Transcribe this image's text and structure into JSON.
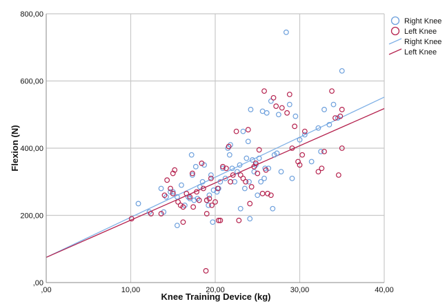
{
  "chart_data": {
    "type": "scatter",
    "xlabel": "Knee Training Device (kg)",
    "ylabel": "Flexion (N)",
    "xlim": [
      0,
      40
    ],
    "ylim": [
      0,
      800
    ],
    "x_ticks": [
      ",00",
      "10,00",
      "20,00",
      "30,00",
      "40,00"
    ],
    "y_ticks": [
      ",00",
      "200,00",
      "400,00",
      "600,00",
      "800,00"
    ],
    "grid": true,
    "legend_position": "top-right",
    "legend": [
      {
        "label": "Right Knee",
        "kind": "marker",
        "color": "#6c9fdc"
      },
      {
        "label": "Left Knee",
        "kind": "marker",
        "color": "#b5224e"
      },
      {
        "label": "Right Knee",
        "kind": "line",
        "color": "#7fb0e6"
      },
      {
        "label": "Left Knee",
        "kind": "line",
        "color": "#b5224e"
      }
    ],
    "series": [
      {
        "name": "Right Knee",
        "color": "#6c9fdc",
        "points": [
          [
            10.9,
            235
          ],
          [
            12.2,
            210
          ],
          [
            13.6,
            280
          ],
          [
            13.9,
            210
          ],
          [
            14.2,
            255
          ],
          [
            14.7,
            270
          ],
          [
            15.0,
            270
          ],
          [
            15.5,
            255
          ],
          [
            15.5,
            170
          ],
          [
            16.0,
            290
          ],
          [
            16.4,
            230
          ],
          [
            16.8,
            255
          ],
          [
            17.0,
            250
          ],
          [
            17.2,
            380
          ],
          [
            17.3,
            320
          ],
          [
            17.5,
            245
          ],
          [
            17.7,
            345
          ],
          [
            17.9,
            250
          ],
          [
            18.2,
            285
          ],
          [
            18.5,
            300
          ],
          [
            18.7,
            350
          ],
          [
            19.0,
            245
          ],
          [
            19.2,
            230
          ],
          [
            19.3,
            260
          ],
          [
            19.5,
            320
          ],
          [
            19.7,
            180
          ],
          [
            19.8,
            275
          ],
          [
            20.2,
            270
          ],
          [
            20.4,
            280
          ],
          [
            20.6,
            300
          ],
          [
            20.9,
            340
          ],
          [
            21.2,
            310
          ],
          [
            21.5,
            400
          ],
          [
            21.7,
            380
          ],
          [
            21.8,
            410
          ],
          [
            22.0,
            340
          ],
          [
            22.3,
            300
          ],
          [
            22.6,
            330
          ],
          [
            22.9,
            350
          ],
          [
            23.0,
            220
          ],
          [
            23.3,
            450
          ],
          [
            23.5,
            280
          ],
          [
            23.7,
            370
          ],
          [
            23.9,
            420
          ],
          [
            24.0,
            300
          ],
          [
            24.1,
            190
          ],
          [
            24.2,
            515
          ],
          [
            24.4,
            365
          ],
          [
            24.6,
            330
          ],
          [
            24.8,
            350
          ],
          [
            25.0,
            260
          ],
          [
            25.2,
            370
          ],
          [
            25.4,
            300
          ],
          [
            25.6,
            510
          ],
          [
            25.8,
            310
          ],
          [
            25.9,
            340
          ],
          [
            26.1,
            505
          ],
          [
            26.3,
            340
          ],
          [
            26.6,
            540
          ],
          [
            26.8,
            220
          ],
          [
            27.0,
            380
          ],
          [
            27.3,
            385
          ],
          [
            27.5,
            500
          ],
          [
            27.8,
            330
          ],
          [
            28.4,
            745
          ],
          [
            28.8,
            530
          ],
          [
            29.1,
            310
          ],
          [
            29.5,
            495
          ],
          [
            30.0,
            425
          ],
          [
            30.6,
            440
          ],
          [
            31.4,
            360
          ],
          [
            32.2,
            460
          ],
          [
            32.5,
            390
          ],
          [
            32.9,
            515
          ],
          [
            33.5,
            470
          ],
          [
            34.0,
            530
          ],
          [
            34.5,
            490
          ],
          [
            35.0,
            630
          ]
        ]
      },
      {
        "name": "Left Knee",
        "color": "#b5224e",
        "points": [
          [
            10.1,
            190
          ],
          [
            12.4,
            205
          ],
          [
            13.6,
            205
          ],
          [
            14.0,
            260
          ],
          [
            14.3,
            305
          ],
          [
            14.7,
            280
          ],
          [
            15.0,
            325
          ],
          [
            15.0,
            265
          ],
          [
            15.2,
            335
          ],
          [
            15.6,
            240
          ],
          [
            15.9,
            230
          ],
          [
            16.2,
            225
          ],
          [
            16.2,
            180
          ],
          [
            16.6,
            265
          ],
          [
            17.0,
            255
          ],
          [
            17.3,
            325
          ],
          [
            17.4,
            225
          ],
          [
            17.8,
            270
          ],
          [
            18.1,
            245
          ],
          [
            18.4,
            355
          ],
          [
            18.6,
            280
          ],
          [
            18.9,
            35
          ],
          [
            19.0,
            245
          ],
          [
            19.0,
            205
          ],
          [
            19.3,
            250
          ],
          [
            19.5,
            310
          ],
          [
            19.6,
            230
          ],
          [
            20.0,
            240
          ],
          [
            20.3,
            280
          ],
          [
            20.4,
            185
          ],
          [
            20.6,
            185
          ],
          [
            20.9,
            345
          ],
          [
            21.3,
            340
          ],
          [
            21.6,
            405
          ],
          [
            21.8,
            300
          ],
          [
            22.1,
            320
          ],
          [
            22.5,
            450
          ],
          [
            22.8,
            185
          ],
          [
            23.0,
            320
          ],
          [
            23.3,
            310
          ],
          [
            23.6,
            300
          ],
          [
            23.9,
            455
          ],
          [
            24.1,
            235
          ],
          [
            24.3,
            285
          ],
          [
            24.6,
            345
          ],
          [
            24.8,
            355
          ],
          [
            25.0,
            325
          ],
          [
            25.2,
            395
          ],
          [
            25.6,
            265
          ],
          [
            25.8,
            570
          ],
          [
            26.0,
            335
          ],
          [
            26.2,
            265
          ],
          [
            26.6,
            260
          ],
          [
            26.9,
            550
          ],
          [
            27.2,
            525
          ],
          [
            27.9,
            520
          ],
          [
            28.5,
            505
          ],
          [
            28.8,
            560
          ],
          [
            29.1,
            400
          ],
          [
            29.4,
            465
          ],
          [
            29.8,
            360
          ],
          [
            30.0,
            350
          ],
          [
            30.3,
            380
          ],
          [
            30.6,
            450
          ],
          [
            32.2,
            330
          ],
          [
            32.6,
            340
          ],
          [
            32.9,
            390
          ],
          [
            33.8,
            570
          ],
          [
            34.2,
            490
          ],
          [
            34.6,
            320
          ],
          [
            34.8,
            495
          ],
          [
            35.0,
            515
          ],
          [
            35.0,
            400
          ]
        ]
      }
    ],
    "fit_lines": [
      {
        "name": "Right Knee",
        "color": "#7fb0e6",
        "x": [
          0,
          40
        ],
        "y": [
          75,
          552
        ]
      },
      {
        "name": "Left Knee",
        "color": "#b5224e",
        "x": [
          0,
          40
        ],
        "y": [
          75,
          518
        ]
      }
    ]
  }
}
